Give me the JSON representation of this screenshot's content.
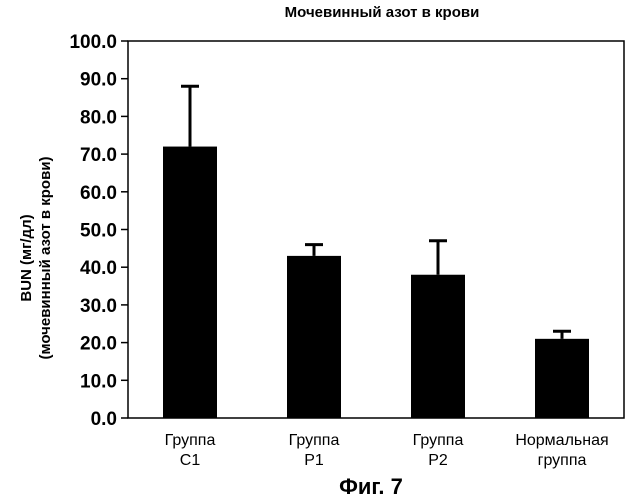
{
  "chart_data": {
    "type": "bar",
    "title": "Мочевинный азот в крови",
    "ylabel_line1": "BUN (мг/дл)",
    "ylabel_line2": "(мочевинный азот в крови)",
    "xlabel": "",
    "ylim": [
      0,
      100
    ],
    "yticks": [
      0,
      10,
      20,
      30,
      40,
      50,
      60,
      70,
      80,
      90,
      100
    ],
    "ytick_labels": [
      "0.0",
      "10.0",
      "20.0",
      "30.0",
      "40.0",
      "50.0",
      "60.0",
      "70.0",
      "80.0",
      "90.0",
      "100.0"
    ],
    "categories": [
      [
        "Группа",
        "С1"
      ],
      [
        "Группа",
        "Р1"
      ],
      [
        "Группа",
        "Р2"
      ],
      [
        "Нормальная",
        "группа"
      ]
    ],
    "values": [
      72,
      43,
      38,
      21
    ],
    "error_upper": [
      88,
      46,
      47,
      23
    ],
    "grid": false,
    "bar_color": "#000000"
  },
  "caption": "Фиг. 7"
}
